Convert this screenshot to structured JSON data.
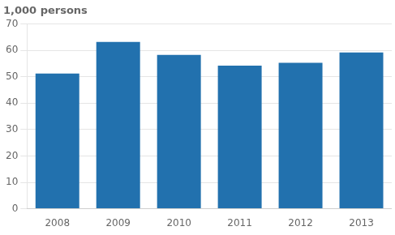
{
  "chart_data": {
    "type": "bar",
    "ylabel": "1,000 persons",
    "categories": [
      "2008",
      "2009",
      "2010",
      "2011",
      "2012",
      "2013"
    ],
    "values": [
      51.2,
      63.2,
      58.3,
      54.2,
      55.3,
      59.2
    ],
    "color": "#2271ae",
    "ylim": [
      0,
      70
    ],
    "yticks": [
      0,
      10,
      20,
      30,
      40,
      50,
      60,
      70
    ],
    "grid": true
  }
}
